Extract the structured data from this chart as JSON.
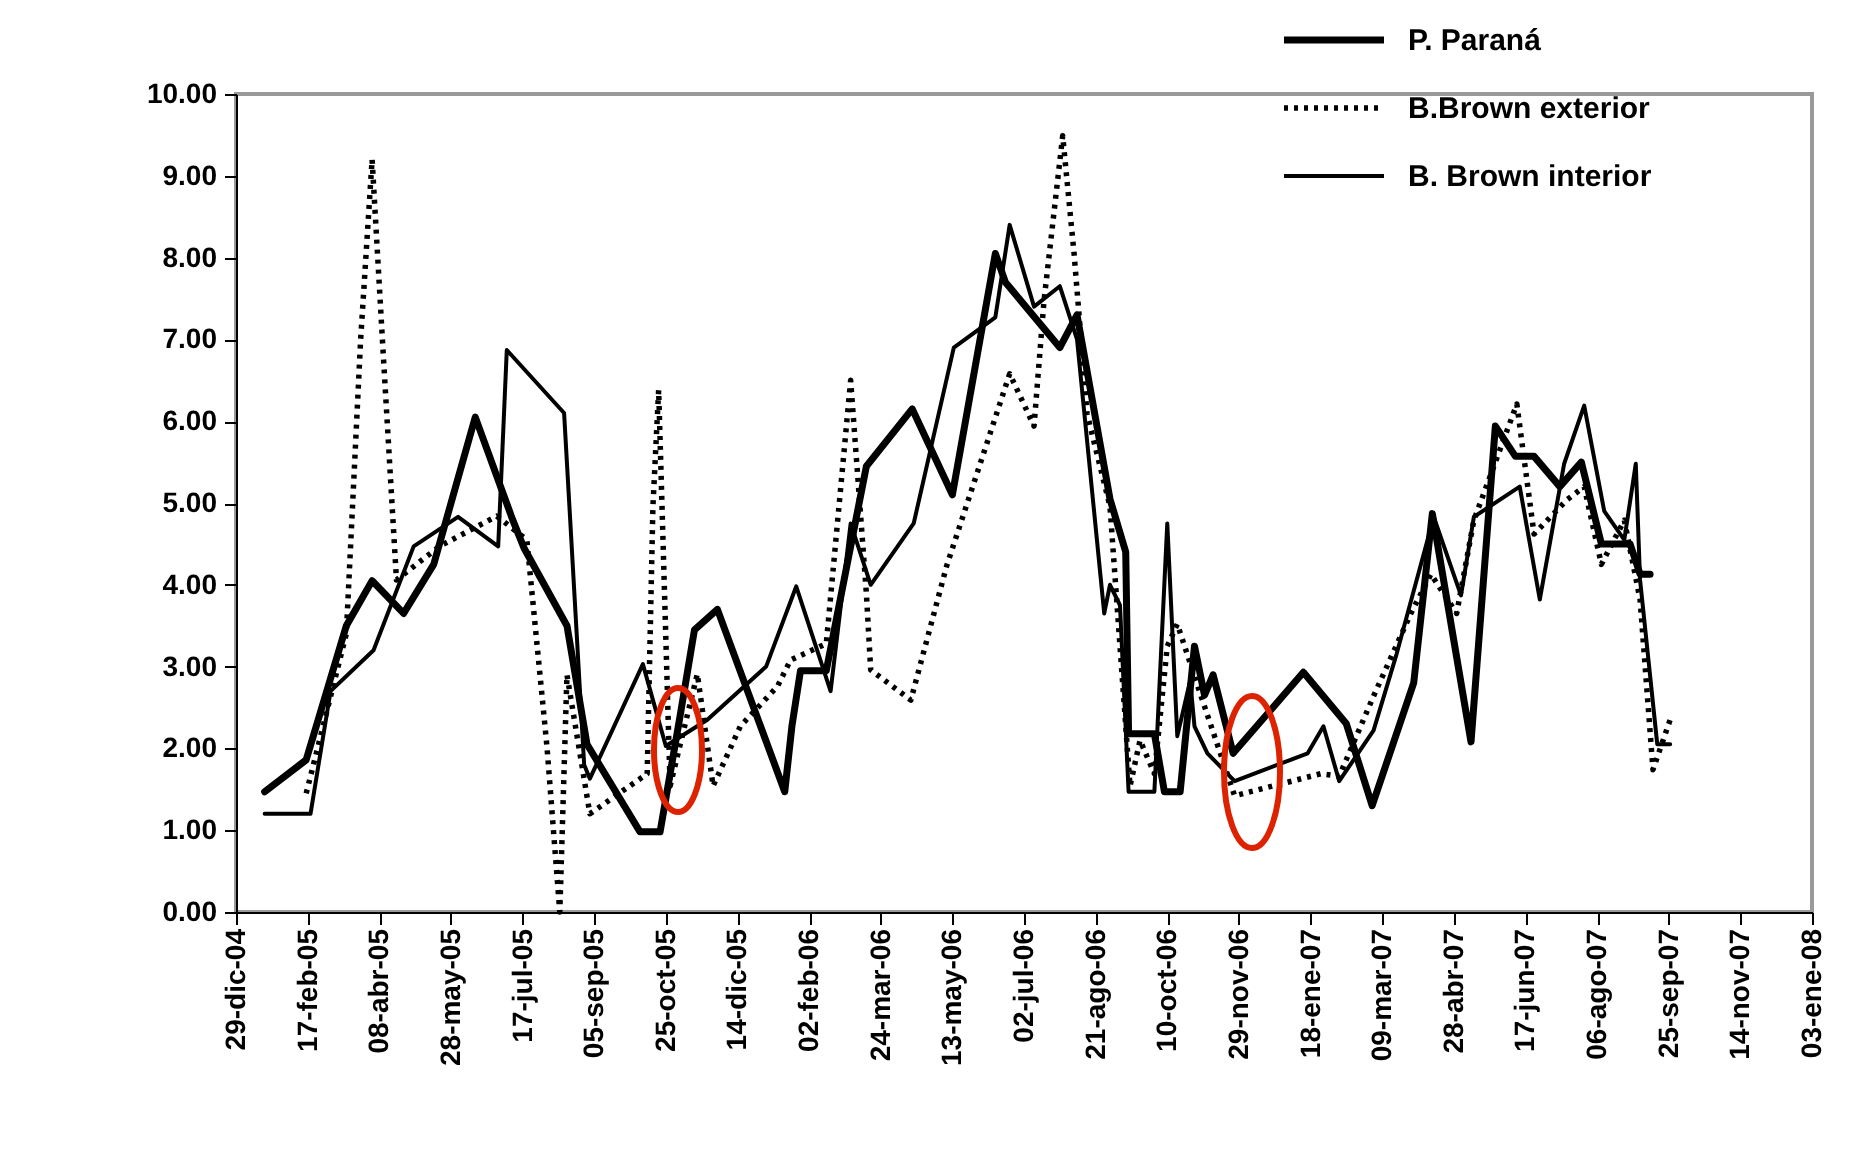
{
  "chart_data": {
    "type": "line",
    "xlim": [
      "2004-12-29",
      "2008-01-03"
    ],
    "xticks": [
      {
        "value": "2004-12-29",
        "label": "29-dic-04"
      },
      {
        "value": "2005-02-17",
        "label": "17-feb-05"
      },
      {
        "value": "2005-04-08",
        "label": "08-abr-05"
      },
      {
        "value": "2005-05-28",
        "label": "28-may-05"
      },
      {
        "value": "2005-07-17",
        "label": "17-jul-05"
      },
      {
        "value": "2005-09-05",
        "label": "05-sep-05"
      },
      {
        "value": "2005-10-25",
        "label": "25-oct-05"
      },
      {
        "value": "2005-12-14",
        "label": "14-dic-05"
      },
      {
        "value": "2006-02-02",
        "label": "02-feb-06"
      },
      {
        "value": "2006-03-24",
        "label": "24-mar-06"
      },
      {
        "value": "2006-05-13",
        "label": "13-may-06"
      },
      {
        "value": "2006-07-02",
        "label": "02-jul-06"
      },
      {
        "value": "2006-08-21",
        "label": "21-ago-06"
      },
      {
        "value": "2006-10-10",
        "label": "10-oct-06"
      },
      {
        "value": "2006-11-29",
        "label": "29-nov-06"
      },
      {
        "value": "2007-01-18",
        "label": "18-ene-07"
      },
      {
        "value": "2007-03-09",
        "label": "09-mar-07"
      },
      {
        "value": "2007-04-28",
        "label": "28-abr-07"
      },
      {
        "value": "2007-06-17",
        "label": "17-jun-07"
      },
      {
        "value": "2007-08-06",
        "label": "06-ago-07"
      },
      {
        "value": "2007-09-25",
        "label": "25-sep-07"
      },
      {
        "value": "2007-11-14",
        "label": "14-nov-07"
      },
      {
        "value": "2008-01-03",
        "label": "03-ene-08"
      }
    ],
    "ylim": [
      0,
      10
    ],
    "yticks": [
      {
        "value": 0,
        "label": "0.00"
      },
      {
        "value": 1,
        "label": "1.00"
      },
      {
        "value": 2,
        "label": "2.00"
      },
      {
        "value": 3,
        "label": "3.00"
      },
      {
        "value": 4,
        "label": "4.00"
      },
      {
        "value": 5,
        "label": "5.00"
      },
      {
        "value": 6,
        "label": "6.00"
      },
      {
        "value": 7,
        "label": "7.00"
      },
      {
        "value": 8,
        "label": "8.00"
      },
      {
        "value": 9,
        "label": "9.00"
      },
      {
        "value": 10,
        "label": "10.00"
      }
    ],
    "grid": false,
    "legend": "top right",
    "series": [
      {
        "name": "P. Paraná",
        "color": "#000000",
        "line_style": "solid",
        "x": [
          "2005-01-18",
          "2005-02-16",
          "2005-03-16",
          "2005-04-03",
          "2005-04-25",
          "2005-05-16",
          "2005-06-14",
          "2005-07-10",
          "2005-07-18",
          "2005-08-17",
          "2005-08-31",
          "2005-10-07",
          "2005-10-21",
          "2005-11-04",
          "2005-11-14",
          "2005-11-30",
          "2006-01-16",
          "2006-01-21",
          "2006-01-27",
          "2006-02-14",
          "2006-03-14",
          "2006-04-15",
          "2006-05-13",
          "2006-06-12",
          "2006-06-19",
          "2006-07-27",
          "2006-08-08",
          "2006-08-31",
          "2006-09-11",
          "2006-09-13",
          "2006-10-01",
          "2006-10-08",
          "2006-10-19",
          "2006-10-29",
          "2006-11-05",
          "2006-11-11",
          "2006-11-25",
          "2007-01-13",
          "2007-02-12",
          "2007-03-02",
          "2007-03-31",
          "2007-04-13",
          "2007-05-10",
          "2007-05-27",
          "2007-06-10",
          "2007-06-23",
          "2007-07-11",
          "2007-07-26",
          "2007-08-09",
          "2007-08-29",
          "2007-09-05",
          "2007-09-12"
        ],
        "values": [
          1.47,
          1.86,
          3.5,
          4.05,
          3.65,
          4.25,
          6.05,
          4.8,
          4.45,
          3.5,
          2.05,
          0.98,
          0.98,
          2.4,
          3.45,
          3.7,
          1.47,
          2.27,
          2.95,
          2.95,
          5.45,
          6.15,
          5.1,
          8.05,
          7.7,
          6.9,
          7.3,
          5.05,
          4.4,
          2.18,
          2.18,
          1.47,
          1.47,
          3.25,
          2.65,
          2.9,
          1.94,
          2.93,
          2.3,
          1.3,
          2.8,
          4.87,
          2.08,
          5.94,
          5.57,
          5.57,
          5.2,
          5.5,
          4.5,
          4.5,
          4.13,
          4.13
        ]
      },
      {
        "name": "B.Brown exterior",
        "color": "#000000",
        "line_style": "dotted",
        "x": [
          "2005-02-16",
          "2005-03-16",
          "2005-03-26",
          "2005-04-03",
          "2005-04-11",
          "2005-04-20",
          "2005-05-20",
          "2005-06-29",
          "2005-07-20",
          "2005-08-03",
          "2005-08-12",
          "2005-08-17",
          "2005-09-02",
          "2005-10-12",
          "2005-10-16",
          "2005-10-20",
          "2005-10-28",
          "2005-11-16",
          "2005-11-27",
          "2005-12-16",
          "2006-01-11",
          "2006-01-20",
          "2006-02-14",
          "2006-03-03",
          "2006-03-14",
          "2006-03-17",
          "2006-04-14",
          "2006-05-09",
          "2006-06-22",
          "2006-07-09",
          "2006-07-16",
          "2006-07-29",
          "2006-08-06",
          "2006-08-15",
          "2006-08-31",
          "2006-09-14",
          "2006-09-21",
          "2006-10-01",
          "2006-10-10",
          "2006-10-17",
          "2006-11-02",
          "2006-11-26",
          "2007-01-25",
          "2007-02-07",
          "2007-03-03",
          "2007-03-29",
          "2007-04-12",
          "2007-04-30",
          "2007-05-12",
          "2007-06-11",
          "2007-06-23",
          "2007-07-16",
          "2007-07-28",
          "2007-08-09",
          "2007-08-25",
          "2007-09-05",
          "2007-09-14",
          "2007-09-26"
        ],
        "values": [
          1.45,
          3.4,
          7.0,
          9.2,
          6.75,
          4.06,
          4.47,
          4.84,
          4.55,
          2.03,
          0.0,
          2.9,
          1.2,
          1.69,
          4.96,
          6.38,
          1.54,
          2.91,
          1.54,
          2.27,
          2.76,
          3.08,
          3.28,
          6.5,
          3.89,
          2.96,
          2.59,
          4.23,
          6.58,
          5.94,
          7.48,
          9.49,
          8.04,
          6.09,
          4.96,
          1.54,
          2.1,
          1.69,
          3.25,
          3.52,
          2.67,
          1.42,
          1.69,
          1.66,
          2.64,
          3.65,
          4.13,
          3.65,
          4.79,
          6.21,
          4.62,
          5.04,
          5.2,
          4.25,
          4.79,
          3.82,
          1.74,
          2.35
        ]
      },
      {
        "name": "B. Brown interior",
        "color": "#000000",
        "line_style": "solid",
        "x": [
          "2005-01-18",
          "2005-02-19",
          "2005-03-05",
          "2005-04-04",
          "2005-05-02",
          "2005-06-02",
          "2005-06-30",
          "2005-07-06",
          "2005-08-15",
          "2005-08-29",
          "2005-09-02",
          "2005-10-09",
          "2005-10-25",
          "2005-11-23",
          "2006-01-03",
          "2006-01-24",
          "2006-02-17",
          "2006-03-03",
          "2006-03-17",
          "2006-04-16",
          "2006-05-14",
          "2006-06-12",
          "2006-06-22",
          "2006-07-09",
          "2006-07-27",
          "2006-08-08",
          "2006-08-27",
          "2006-08-31",
          "2006-09-07",
          "2006-09-13",
          "2006-10-01",
          "2006-10-10",
          "2006-10-17",
          "2006-10-26",
          "2006-10-29",
          "2006-11-07",
          "2006-11-26",
          "2007-01-16",
          "2007-01-27",
          "2007-02-07",
          "2007-03-03",
          "2007-03-19",
          "2007-04-14",
          "2007-05-03",
          "2007-05-12",
          "2007-06-13",
          "2007-06-27",
          "2007-07-14",
          "2007-07-28",
          "2007-08-11",
          "2007-08-25",
          "2007-09-02",
          "2007-09-05",
          "2007-09-17",
          "2007-09-26"
        ],
        "values": [
          1.2,
          1.2,
          2.7,
          3.2,
          4.47,
          4.83,
          4.47,
          6.87,
          6.1,
          1.8,
          1.63,
          3.03,
          2.03,
          2.35,
          3.0,
          3.98,
          2.7,
          4.75,
          4.0,
          4.75,
          6.9,
          7.27,
          8.4,
          7.4,
          7.65,
          7.0,
          3.65,
          4.0,
          3.75,
          1.47,
          1.47,
          4.75,
          2.15,
          2.83,
          2.27,
          1.94,
          1.6,
          1.94,
          2.27,
          1.6,
          2.22,
          3.15,
          4.83,
          3.87,
          4.83,
          5.2,
          3.82,
          5.48,
          6.19,
          4.9,
          4.55,
          5.48,
          4.06,
          2.05,
          2.05
        ]
      }
    ]
  }
}
